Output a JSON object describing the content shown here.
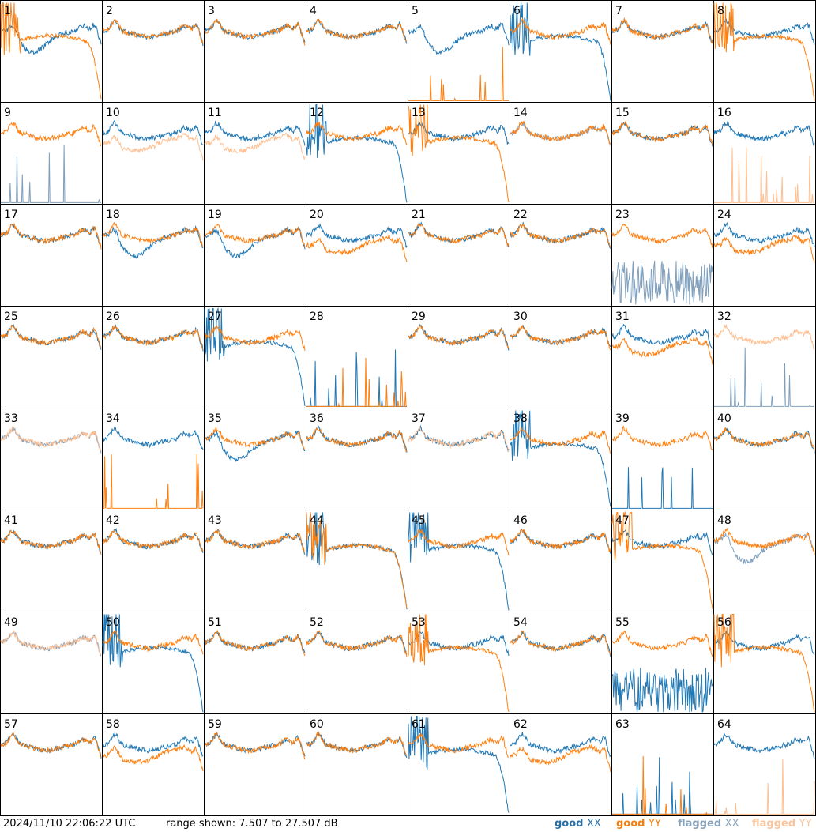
{
  "footer": {
    "timestamp": "2024/11/10 22:06:22 UTC",
    "range": "range shown: 7.507 to 27.507 dB"
  },
  "legend": [
    {
      "prefix": "good ",
      "pol": "XX",
      "prefix_color": "#2b6fa7",
      "pol_color": "#2b6fa7"
    },
    {
      "prefix": "good ",
      "pol": "YY",
      "prefix_color": "#f07f10",
      "pol_color": "#f07f10"
    },
    {
      "prefix": "flagged ",
      "pol": "XX",
      "prefix_color": "#8aa2ba",
      "pol_color": "#8aa2ba"
    },
    {
      "prefix": "flagged ",
      "pol": "YY",
      "prefix_color": "#f8c59e",
      "pol_color": "#f8c59e"
    }
  ],
  "colors": {
    "good_xx": "#1f77b4",
    "good_yy": "#ff7f0e",
    "flagged_xx": "#7f9fbc",
    "flagged_yy": "#ffbe8f"
  },
  "chart_data": {
    "type": "line",
    "layout": "8x8 small multiples",
    "ylim": [
      7.507,
      27.507
    ],
    "panels": [
      {
        "id": "1",
        "xx": "good",
        "yy": "good",
        "xx_shape": "dip",
        "yy_shape": "droop"
      },
      {
        "id": "2",
        "xx": "good",
        "yy": "good",
        "xx_shape": "normal",
        "yy_shape": "normal"
      },
      {
        "id": "3",
        "xx": "good",
        "yy": "good",
        "xx_shape": "normal",
        "yy_shape": "normal"
      },
      {
        "id": "4",
        "xx": "good",
        "yy": "good",
        "xx_shape": "normal",
        "yy_shape": "normal"
      },
      {
        "id": "5",
        "xx": "good",
        "yy": "good",
        "xx_shape": "dip",
        "yy_shape": "dead"
      },
      {
        "id": "6",
        "xx": "good",
        "yy": "good",
        "xx_shape": "droop",
        "yy_shape": "normal"
      },
      {
        "id": "7",
        "xx": "good",
        "yy": "good",
        "xx_shape": "normal",
        "yy_shape": "normal"
      },
      {
        "id": "8",
        "xx": "good",
        "yy": "good",
        "xx_shape": "normal",
        "yy_shape": "droop"
      },
      {
        "id": "9",
        "xx": "flagged",
        "yy": "good",
        "xx_shape": "dead",
        "yy_shape": "normal"
      },
      {
        "id": "10",
        "xx": "good",
        "yy": "flagged",
        "xx_shape": "normal",
        "yy_shape": "low"
      },
      {
        "id": "11",
        "xx": "good",
        "yy": "flagged",
        "xx_shape": "normal",
        "yy_shape": "low"
      },
      {
        "id": "12",
        "xx": "good",
        "yy": "good",
        "xx_shape": "droop",
        "yy_shape": "normal"
      },
      {
        "id": "13",
        "xx": "good",
        "yy": "good",
        "xx_shape": "normal",
        "yy_shape": "droop"
      },
      {
        "id": "14",
        "xx": "flagged",
        "yy": "good",
        "xx_shape": "normal",
        "yy_shape": "normal"
      },
      {
        "id": "15",
        "xx": "good",
        "yy": "good",
        "xx_shape": "normal",
        "yy_shape": "normal"
      },
      {
        "id": "16",
        "xx": "good",
        "yy": "flagged",
        "xx_shape": "normal",
        "yy_shape": "dead"
      },
      {
        "id": "17",
        "xx": "good",
        "yy": "good",
        "xx_shape": "normal",
        "yy_shape": "normal"
      },
      {
        "id": "18",
        "xx": "good",
        "yy": "good",
        "xx_shape": "dip",
        "yy_shape": "normal"
      },
      {
        "id": "19",
        "xx": "good",
        "yy": "good",
        "xx_shape": "dip",
        "yy_shape": "normal"
      },
      {
        "id": "20",
        "xx": "good",
        "yy": "good",
        "xx_shape": "normal",
        "yy_shape": "low"
      },
      {
        "id": "21",
        "xx": "good",
        "yy": "good",
        "xx_shape": "normal",
        "yy_shape": "normal"
      },
      {
        "id": "22",
        "xx": "good",
        "yy": "good",
        "xx_shape": "normal",
        "yy_shape": "normal"
      },
      {
        "id": "23",
        "xx": "flagged",
        "yy": "good",
        "xx_shape": "noise",
        "yy_shape": "normal"
      },
      {
        "id": "24",
        "xx": "good",
        "yy": "good",
        "xx_shape": "normal",
        "yy_shape": "low"
      },
      {
        "id": "25",
        "xx": "good",
        "yy": "good",
        "xx_shape": "normal",
        "yy_shape": "normal"
      },
      {
        "id": "26",
        "xx": "good",
        "yy": "good",
        "xx_shape": "normal",
        "yy_shape": "normal"
      },
      {
        "id": "27",
        "xx": "good",
        "yy": "good",
        "xx_shape": "droop",
        "yy_shape": "normal"
      },
      {
        "id": "28",
        "xx": "good",
        "yy": "good",
        "xx_shape": "dead",
        "yy_shape": "dead"
      },
      {
        "id": "29",
        "xx": "good",
        "yy": "good",
        "xx_shape": "normal",
        "yy_shape": "normal"
      },
      {
        "id": "30",
        "xx": "good",
        "yy": "good",
        "xx_shape": "normal",
        "yy_shape": "normal"
      },
      {
        "id": "31",
        "xx": "good",
        "yy": "good",
        "xx_shape": "normal",
        "yy_shape": "low"
      },
      {
        "id": "32",
        "xx": "flagged",
        "yy": "flagged",
        "xx_shape": "dead",
        "yy_shape": "normal"
      },
      {
        "id": "33",
        "xx": "flagged",
        "yy": "flagged",
        "xx_shape": "normal",
        "yy_shape": "normal"
      },
      {
        "id": "34",
        "xx": "good",
        "yy": "good",
        "xx_shape": "normal",
        "yy_shape": "dead"
      },
      {
        "id": "35",
        "xx": "good",
        "yy": "good",
        "xx_shape": "dip",
        "yy_shape": "normal"
      },
      {
        "id": "36",
        "xx": "good",
        "yy": "good",
        "xx_shape": "normal",
        "yy_shape": "normal"
      },
      {
        "id": "37",
        "xx": "good",
        "yy": "flagged",
        "xx_shape": "normal",
        "yy_shape": "normal"
      },
      {
        "id": "38",
        "xx": "good",
        "yy": "good",
        "xx_shape": "droop",
        "yy_shape": "normal"
      },
      {
        "id": "39",
        "xx": "good",
        "yy": "good",
        "xx_shape": "dead",
        "yy_shape": "normal"
      },
      {
        "id": "40",
        "xx": "good",
        "yy": "good",
        "xx_shape": "normal",
        "yy_shape": "normal"
      },
      {
        "id": "41",
        "xx": "good",
        "yy": "good",
        "xx_shape": "normal",
        "yy_shape": "normal"
      },
      {
        "id": "42",
        "xx": "good",
        "yy": "good",
        "xx_shape": "normal",
        "yy_shape": "normal"
      },
      {
        "id": "43",
        "xx": "good",
        "yy": "good",
        "xx_shape": "normal",
        "yy_shape": "normal"
      },
      {
        "id": "44",
        "xx": "good",
        "yy": "good",
        "xx_shape": "droop",
        "yy_shape": "droop"
      },
      {
        "id": "45",
        "xx": "good",
        "yy": "good",
        "xx_shape": "droop",
        "yy_shape": "normal"
      },
      {
        "id": "46",
        "xx": "good",
        "yy": "good",
        "xx_shape": "normal",
        "yy_shape": "normal"
      },
      {
        "id": "47",
        "xx": "good",
        "yy": "good",
        "xx_shape": "normal",
        "yy_shape": "droop"
      },
      {
        "id": "48",
        "xx": "flagged",
        "yy": "good",
        "xx_shape": "dip",
        "yy_shape": "normal"
      },
      {
        "id": "49",
        "xx": "flagged",
        "yy": "flagged",
        "xx_shape": "normal",
        "yy_shape": "normal"
      },
      {
        "id": "50",
        "xx": "good",
        "yy": "good",
        "xx_shape": "droop",
        "yy_shape": "normal"
      },
      {
        "id": "51",
        "xx": "good",
        "yy": "good",
        "xx_shape": "normal",
        "yy_shape": "normal"
      },
      {
        "id": "52",
        "xx": "good",
        "yy": "good",
        "xx_shape": "normal",
        "yy_shape": "normal"
      },
      {
        "id": "53",
        "xx": "good",
        "yy": "good",
        "xx_shape": "normal",
        "yy_shape": "droop"
      },
      {
        "id": "54",
        "xx": "good",
        "yy": "good",
        "xx_shape": "normal",
        "yy_shape": "normal"
      },
      {
        "id": "55",
        "xx": "good",
        "yy": "good",
        "xx_shape": "noise",
        "yy_shape": "normal"
      },
      {
        "id": "56",
        "xx": "good",
        "yy": "good",
        "xx_shape": "normal",
        "yy_shape": "droop"
      },
      {
        "id": "57",
        "xx": "good",
        "yy": "good",
        "xx_shape": "normal",
        "yy_shape": "normal"
      },
      {
        "id": "58",
        "xx": "good",
        "yy": "good",
        "xx_shape": "normal",
        "yy_shape": "low"
      },
      {
        "id": "59",
        "xx": "good",
        "yy": "good",
        "xx_shape": "normal",
        "yy_shape": "normal"
      },
      {
        "id": "60",
        "xx": "good",
        "yy": "good",
        "xx_shape": "normal",
        "yy_shape": "normal"
      },
      {
        "id": "61",
        "xx": "good",
        "yy": "good",
        "xx_shape": "droop",
        "yy_shape": "normal"
      },
      {
        "id": "62",
        "xx": "good",
        "yy": "good",
        "xx_shape": "normal",
        "yy_shape": "low"
      },
      {
        "id": "63",
        "xx": "good",
        "yy": "good",
        "xx_shape": "dead",
        "yy_shape": "dead"
      },
      {
        "id": "64",
        "xx": "good",
        "yy": "flagged",
        "xx_shape": "normal",
        "yy_shape": "dead"
      }
    ]
  }
}
